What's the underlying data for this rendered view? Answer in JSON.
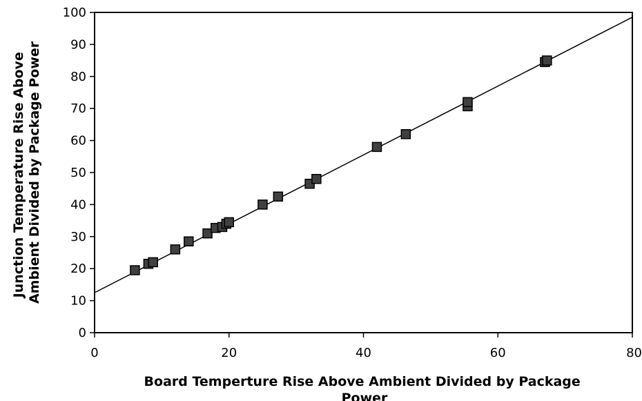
{
  "chart_data": {
    "type": "scatter",
    "title": "",
    "xlabel_lines": [
      "Board Temperture Rise Above Ambient Divided by Package",
      "Power"
    ],
    "ylabel_lines": [
      "Junction Temperature Rise Above",
      "Ambient Divided by Package Power"
    ],
    "xlim": [
      0,
      80
    ],
    "ylim": [
      0,
      100
    ],
    "x_ticks": [
      0,
      20,
      40,
      60,
      80
    ],
    "y_ticks": [
      0,
      10,
      20,
      30,
      40,
      50,
      60,
      70,
      80,
      90,
      100
    ],
    "grid": false,
    "legend": "none",
    "marker_color": "#404040",
    "line_color": "#000000",
    "series": [
      {
        "x": [
          6.0,
          8.0,
          8.7,
          12.0,
          14.0,
          16.8,
          18.0,
          19.0,
          19.6,
          20.0,
          25.0,
          27.3,
          32.0,
          33.0,
          42.0,
          46.3,
          55.5,
          55.5,
          67.0,
          67.3
        ],
        "y": [
          19.5,
          21.5,
          22.0,
          26.0,
          28.5,
          31.0,
          32.7,
          33.0,
          34.0,
          34.5,
          40.0,
          42.5,
          46.5,
          48.0,
          58.0,
          62.0,
          70.7,
          72.0,
          84.5,
          85.0
        ]
      }
    ],
    "fit_line": {
      "y_at_xmin": 12.5,
      "y_at_xmax": 98.5
    }
  }
}
